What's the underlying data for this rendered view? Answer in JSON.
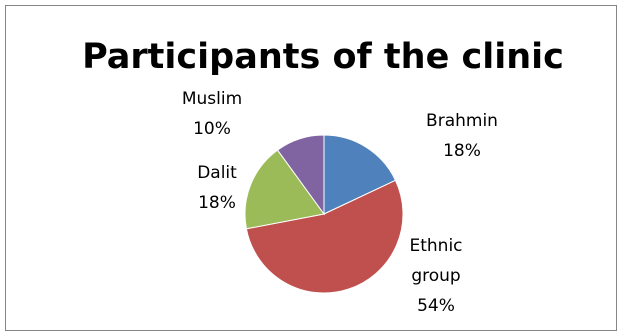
{
  "chart_data": {
    "type": "pie",
    "title": "Participants of the clinic",
    "slices": [
      {
        "label": "Brahmin",
        "label_lines": [
          "Brahmin"
        ],
        "value": 18,
        "display": "18%",
        "color": "#4f81bd"
      },
      {
        "label": "Ethnic group",
        "label_lines": [
          "Ethnic",
          "group"
        ],
        "value": 54,
        "display": "54%",
        "color": "#c0504d"
      },
      {
        "label": "Dalit",
        "label_lines": [
          "Dalit"
        ],
        "value": 18,
        "display": "18%",
        "color": "#9bbb59"
      },
      {
        "label": "Muslim",
        "label_lines": [
          "Muslim"
        ],
        "value": 10,
        "display": "10%",
        "color": "#8064a2"
      }
    ],
    "legend": "none",
    "data_labels": "outside"
  }
}
